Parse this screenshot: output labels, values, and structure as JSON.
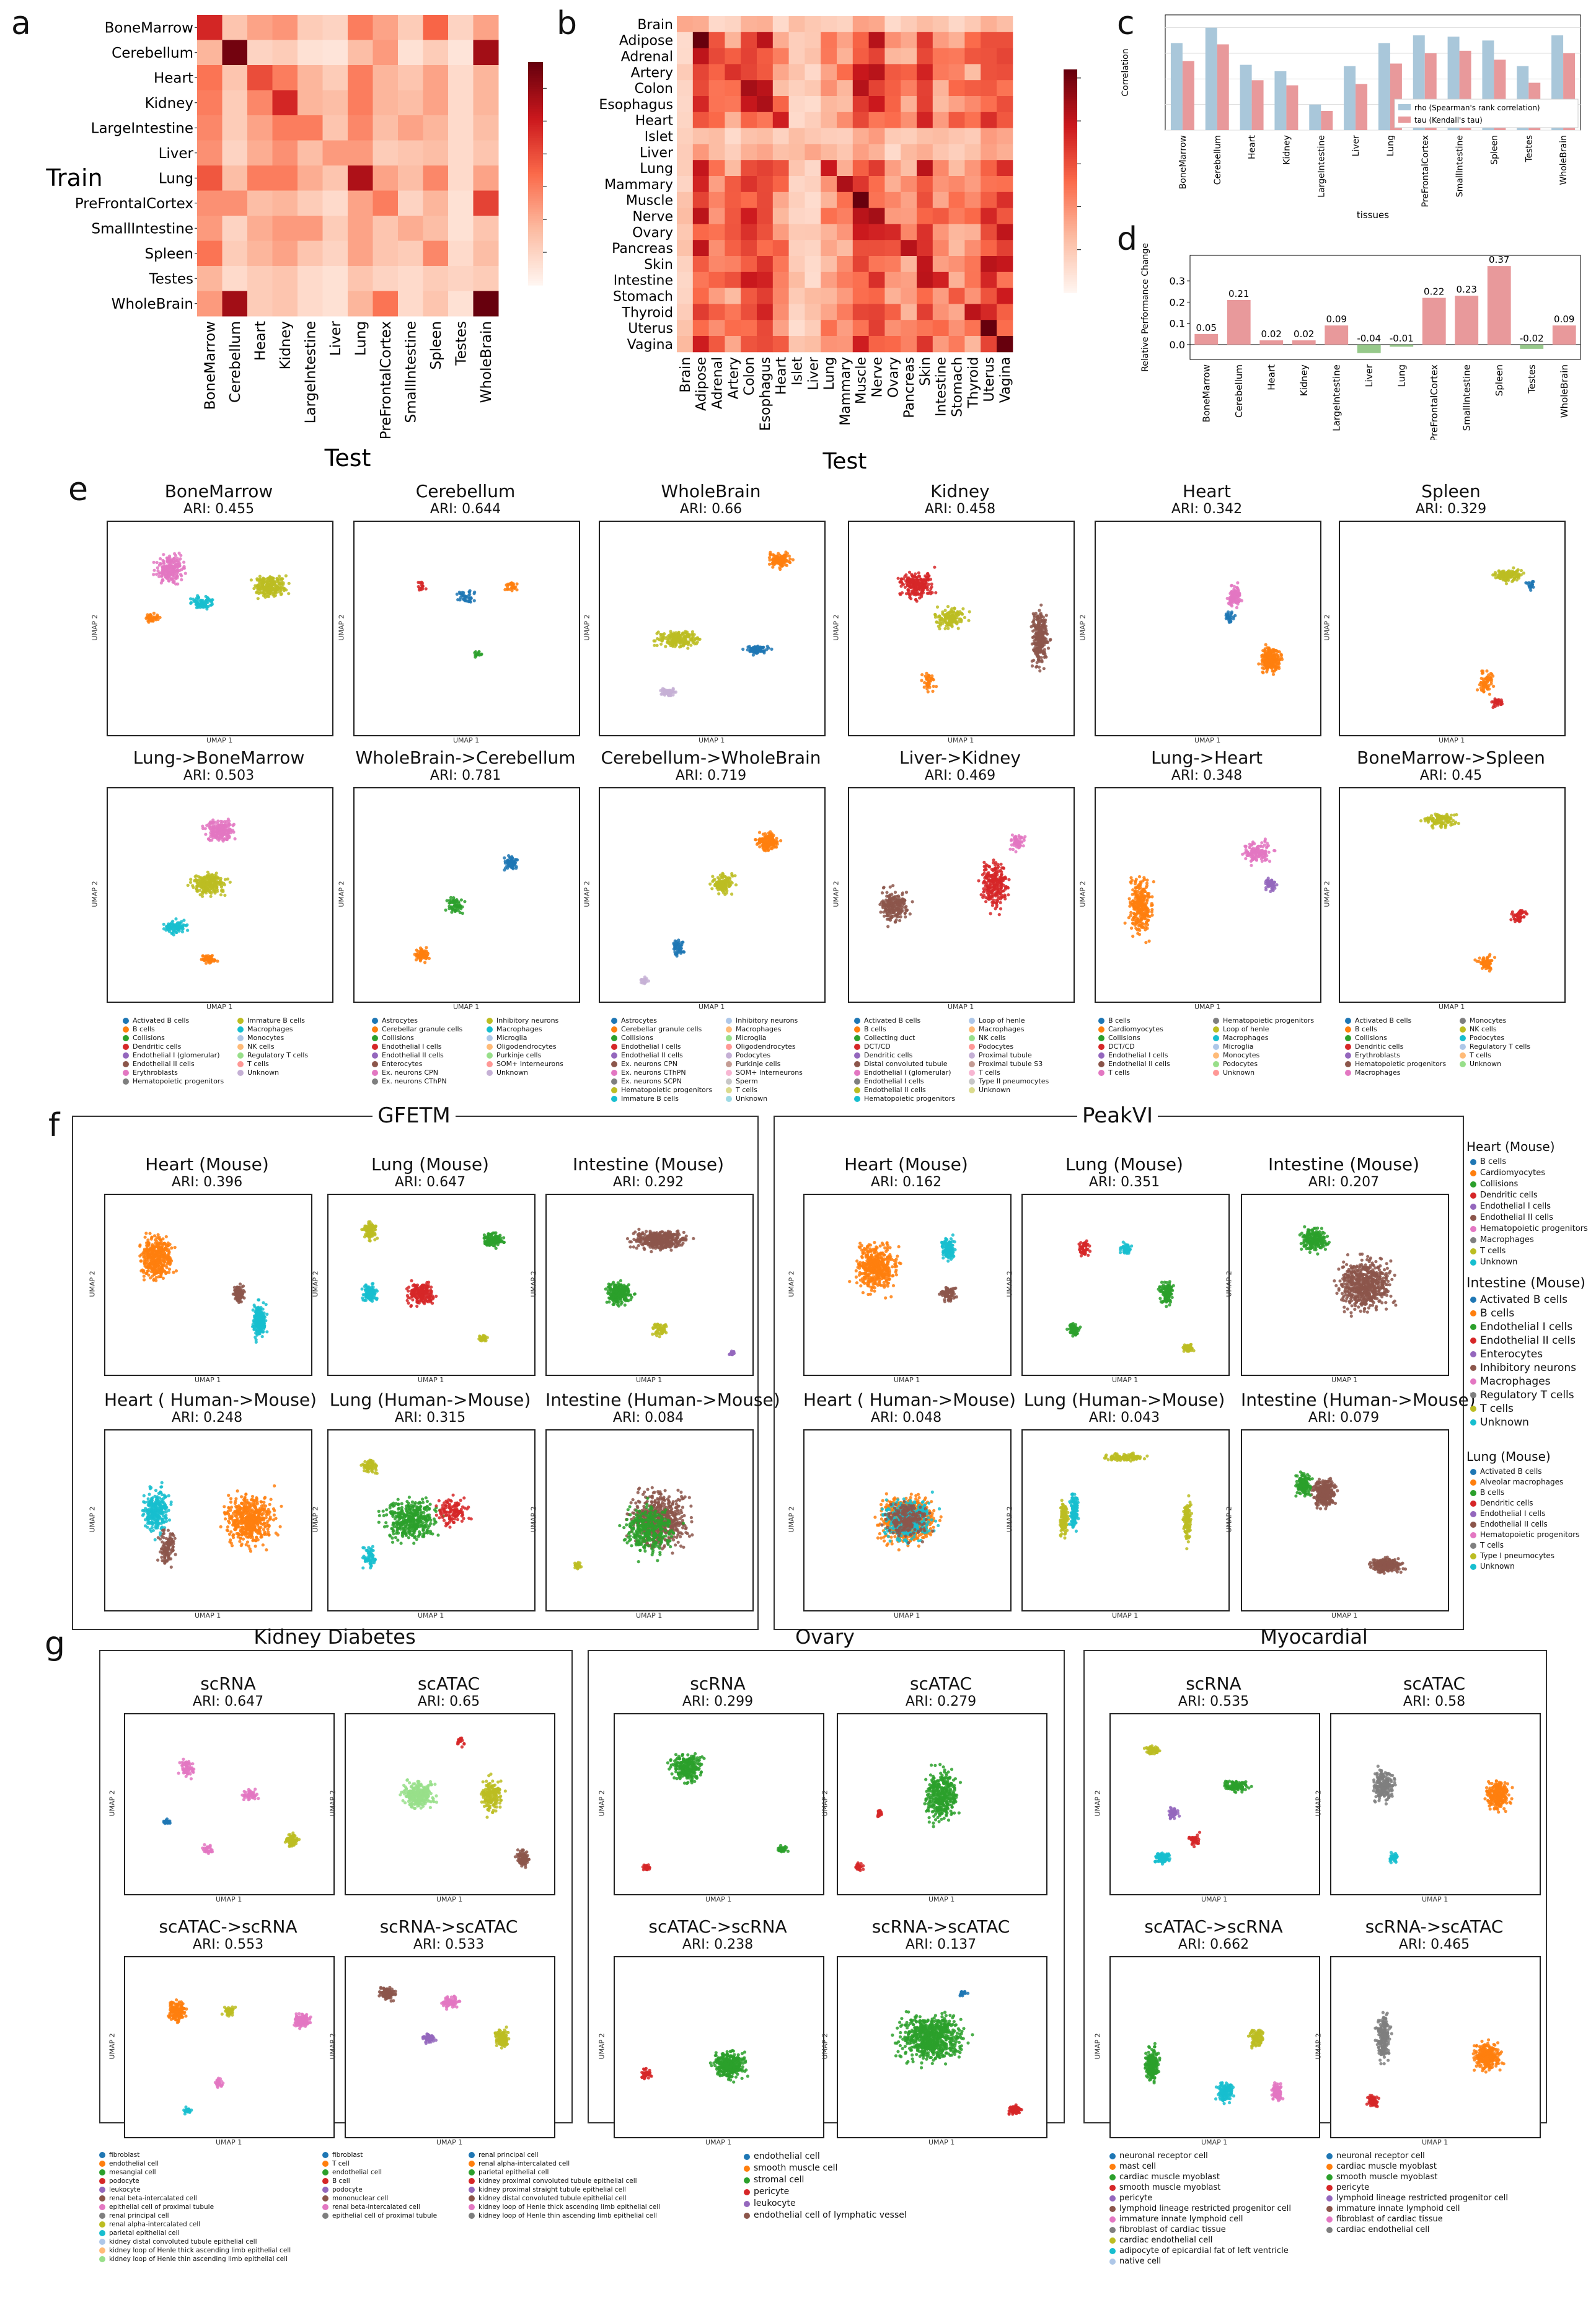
{
  "panels": {
    "a": "a",
    "b": "b",
    "c": "c",
    "d": "d",
    "e": "e",
    "f": "f",
    "g": "g"
  },
  "heatmap_a": {
    "train_label": "Train",
    "test_label": "Test",
    "rows": [
      "BoneMarrow",
      "Cerebellum",
      "Heart",
      "Kidney",
      "LargeIntestine",
      "Liver",
      "Lung",
      "PreFrontalCortex",
      "SmallIntestine",
      "Spleen",
      "Testes",
      "WholeBrain"
    ],
    "cols": [
      "BoneMarrow",
      "Cerebellum",
      "Heart",
      "Kidney",
      "LargeIntestine",
      "Liver",
      "Lung",
      "PreFrontalCortex",
      "SmallIntestine",
      "Spleen",
      "Testes",
      "WholeBrain"
    ],
    "values": [
      [
        0.48,
        0.14,
        0.22,
        0.25,
        0.12,
        0.1,
        0.3,
        0.22,
        0.12,
        0.35,
        0.1,
        0.22
      ],
      [
        0.18,
        0.66,
        0.1,
        0.12,
        0.06,
        0.05,
        0.16,
        0.24,
        0.06,
        0.12,
        0.05,
        0.58
      ],
      [
        0.32,
        0.14,
        0.4,
        0.3,
        0.18,
        0.12,
        0.3,
        0.18,
        0.14,
        0.22,
        0.08,
        0.18
      ],
      [
        0.3,
        0.12,
        0.28,
        0.48,
        0.18,
        0.16,
        0.3,
        0.18,
        0.16,
        0.22,
        0.08,
        0.18
      ],
      [
        0.28,
        0.12,
        0.22,
        0.3,
        0.3,
        0.14,
        0.28,
        0.16,
        0.22,
        0.18,
        0.08,
        0.16
      ],
      [
        0.26,
        0.1,
        0.2,
        0.26,
        0.16,
        0.24,
        0.24,
        0.12,
        0.14,
        0.16,
        0.08,
        0.14
      ],
      [
        0.38,
        0.16,
        0.3,
        0.3,
        0.2,
        0.14,
        0.56,
        0.22,
        0.16,
        0.28,
        0.08,
        0.22
      ],
      [
        0.26,
        0.26,
        0.16,
        0.18,
        0.12,
        0.08,
        0.22,
        0.3,
        0.1,
        0.18,
        0.06,
        0.42
      ],
      [
        0.24,
        0.1,
        0.2,
        0.24,
        0.24,
        0.12,
        0.22,
        0.14,
        0.2,
        0.16,
        0.06,
        0.14
      ],
      [
        0.32,
        0.12,
        0.18,
        0.22,
        0.14,
        0.1,
        0.22,
        0.14,
        0.12,
        0.28,
        0.08,
        0.16
      ],
      [
        0.18,
        0.08,
        0.12,
        0.14,
        0.08,
        0.06,
        0.14,
        0.1,
        0.08,
        0.12,
        0.1,
        0.12
      ],
      [
        0.24,
        0.58,
        0.12,
        0.14,
        0.08,
        0.06,
        0.18,
        0.32,
        0.08,
        0.14,
        0.06,
        0.68
      ]
    ],
    "cbar_ticks": [
      "0.6",
      "0.5",
      "0.4",
      "0.3",
      "0.2",
      "0.1"
    ],
    "vmax": 0.68
  },
  "heatmap_b": {
    "test_label": "Test",
    "rows": [
      "Brain",
      "Adipose",
      "Adrenal",
      "Artery",
      "Colon",
      "Esophagus",
      "Heart",
      "Islet",
      "Liver",
      "Lung",
      "Mammary",
      "Muscle",
      "Nerve",
      "Ovary",
      "Pancreas",
      "Skin",
      "Intestine",
      "Stomach",
      "Thyroid",
      "Uterus",
      "Vagina"
    ],
    "cols": [
      "Brain",
      "Adipose",
      "Adrenal",
      "Artery",
      "Colon",
      "Esophagus",
      "Heart",
      "Islet",
      "Liver",
      "Lung",
      "Mammary",
      "Muscle",
      "Nerve",
      "Ovary",
      "Pancreas",
      "Skin",
      "Intestine",
      "Stomach",
      "Thyroid",
      "Uterus",
      "Vagina"
    ],
    "cbar_ticks": [
      "0.5",
      "0.4",
      "0.3",
      "0.2",
      "0.1"
    ],
    "vmax": 0.52
  },
  "chart_c": {
    "ylabel": "Correlation",
    "xlabel": "tissues",
    "yticks": [
      "0.0",
      "0.2",
      "0.4",
      "0.6",
      "0.8"
    ],
    "categories": [
      "BoneMarrow",
      "Cerebellum",
      "Heart",
      "Kidney",
      "LargeIntestine",
      "Liver",
      "Lung",
      "PreFrontalCortex",
      "SmallIntestine",
      "Spleen",
      "Testes",
      "WholeBrain"
    ],
    "series": [
      {
        "name": "rho (Spearman's rank correlation)",
        "color": "#a9c7da",
        "values": [
          0.68,
          0.8,
          0.51,
          0.46,
          0.2,
          0.5,
          0.68,
          0.74,
          0.73,
          0.7,
          0.5,
          0.74
        ]
      },
      {
        "name": "tau (Kendall's tau)",
        "color": "#e8999b",
        "values": [
          0.54,
          0.67,
          0.39,
          0.35,
          0.15,
          0.36,
          0.52,
          0.6,
          0.62,
          0.55,
          0.37,
          0.6
        ]
      }
    ]
  },
  "chart_d": {
    "ylabel": "Relative Performance Change",
    "yticks": [
      "0.0",
      "0.1",
      "0.2",
      "0.3"
    ],
    "categories": [
      "BoneMarrow",
      "Cerebellum",
      "Heart",
      "Kidney",
      "LargeIntestine",
      "Liver",
      "Lung",
      "PreFrontalCortex",
      "SmallIntestine",
      "Spleen",
      "Testes",
      "WholeBrain"
    ],
    "values": [
      0.05,
      0.21,
      0.02,
      0.02,
      0.09,
      -0.04,
      -0.01,
      0.22,
      0.23,
      0.37,
      -0.02,
      0.09
    ],
    "labels": [
      "0.05",
      "0.21",
      "0.02",
      "0.02",
      "0.09",
      "-0.04",
      "-0.01",
      "0.22",
      "0.23",
      "0.37",
      "-0.02",
      "0.09"
    ],
    "pos_color": "#e8999b",
    "neg_color": "#96c98a"
  },
  "umap_axis": {
    "x": "UMAP 1",
    "y": "UMAP 2"
  },
  "panel_e": {
    "row1": [
      {
        "title": "BoneMarrow",
        "ari": "ARI: 0.455"
      },
      {
        "title": "Cerebellum",
        "ari": "ARI: 0.644"
      },
      {
        "title": "WholeBrain",
        "ari": "ARI: 0.66"
      },
      {
        "title": "Kidney",
        "ari": "ARI: 0.458"
      },
      {
        "title": "Heart",
        "ari": "ARI: 0.342"
      },
      {
        "title": "Spleen",
        "ari": "ARI: 0.329"
      }
    ],
    "row2": [
      {
        "title": "Lung->BoneMarrow",
        "ari": "ARI: 0.503"
      },
      {
        "title": "WholeBrain->Cerebellum",
        "ari": "ARI: 0.781"
      },
      {
        "title": "Cerebellum->WholeBrain",
        "ari": "ARI: 0.719"
      },
      {
        "title": "Liver->Kidney",
        "ari": "ARI: 0.469"
      },
      {
        "title": "Lung->Heart",
        "ari": "ARI: 0.348"
      },
      {
        "title": "BoneMarrow->Spleen",
        "ari": "ARI: 0.45"
      }
    ],
    "legends": [
      [
        "Activated B cells",
        "B cells",
        "Collisions",
        "Dendritic cells",
        "Endothelial I (glomerular)",
        "Endothelial II cells",
        "Erythroblasts",
        "Hematopoietic progenitors",
        "Immature B cells",
        "Macrophages",
        "Monocytes",
        "NK cells",
        "Regulatory T cells",
        "T cells",
        "Unknown"
      ],
      [
        "Astrocytes",
        "Cerebellar granule cells",
        "Collisions",
        "Endothelial I cells",
        "Endothelial II cells",
        "Enterocytes",
        "Ex. neurons CPN",
        "Ex. neurons CThPN",
        "Inhibitory neurons",
        "Macrophages",
        "Microglia",
        "Oligodendrocytes",
        "Purkinje cells",
        "SOM+ Interneurons",
        "Unknown"
      ],
      [
        "Astrocytes",
        "Cerebellar granule cells",
        "Collisions",
        "Endothelial I cells",
        "Endothelial II cells",
        "Ex. neurons CPN",
        "Ex. neurons CThPN",
        "Ex. neurons SCPN",
        "Hematopoietic progenitors",
        "Immature B cells",
        "Inhibitory neurons",
        "Macrophages",
        "Microglia",
        "Oligodendrocytes",
        "Podocytes",
        "Purkinje cells",
        "SOM+ Interneurons",
        "Sperm",
        "T cells",
        "Unknown"
      ],
      [
        "Activated B cells",
        "B cells",
        "Collecting duct",
        "DCT/CD",
        "Dendritic cells",
        "Distal convoluted tubule",
        "Endothelial I (glomerular)",
        "Endothelial I cells",
        "Endothelial II cells",
        "Hematopoietic progenitors",
        "Loop of henle",
        "Macrophages",
        "NK cells",
        "Podocytes",
        "Proximal tubule",
        "Proximal tubule S3",
        "T cells",
        "Type II pneumocytes",
        "Unknown"
      ],
      [
        "B cells",
        "Cardiomyocytes",
        "Collisions",
        "DCT/CD",
        "Endothelial I cells",
        "Endothelial II cells",
        "T cells",
        "Hematopoietic progenitors",
        "Loop of henle",
        "Macrophages",
        "Microglia",
        "Monocytes",
        "Podocytes",
        "Unknown"
      ],
      [
        "Activated B cells",
        "B cells",
        "Collisions",
        "Dendritic cells",
        "Erythroblasts",
        "Hematopoietic progenitors",
        "Macrophages",
        "Monocytes",
        "NK cells",
        "Podocytes",
        "Regulatory T cells",
        "T cells",
        "Unknown"
      ]
    ]
  },
  "panel_f": {
    "left_title": "GFETM",
    "right_title": "PeakVI",
    "left": [
      {
        "title": "Heart (Mouse)",
        "ari": "ARI: 0.396"
      },
      {
        "title": "Lung (Mouse)",
        "ari": "ARI: 0.647"
      },
      {
        "title": "Intestine (Mouse)",
        "ari": "ARI: 0.292"
      },
      {
        "title": "Heart ( Human->Mouse)",
        "ari": "ARI: 0.248"
      },
      {
        "title": "Lung (Human->Mouse)",
        "ari": "ARI: 0.315"
      },
      {
        "title": "Intestine (Human->Mouse)",
        "ari": "ARI: 0.084"
      }
    ],
    "right": [
      {
        "title": "Heart (Mouse)",
        "ari": "ARI: 0.162"
      },
      {
        "title": "Lung (Mouse)",
        "ari": "ARI: 0.351"
      },
      {
        "title": "Intestine (Mouse)",
        "ari": "ARI: 0.207"
      },
      {
        "title": "Heart ( Human->Mouse)",
        "ari": "ARI: 0.048"
      },
      {
        "title": "Lung (Human->Mouse)",
        "ari": "ARI: 0.043"
      },
      {
        "title": "Intestine (Human->Mouse)",
        "ari": "ARI: 0.079"
      }
    ],
    "legend_heart": {
      "title": "Heart (Mouse)",
      "items": [
        "B cells",
        "Cardiomyocytes",
        "Collisions",
        "Dendritic cells",
        "Endothelial I cells",
        "Endothelial II cells",
        "Hematopoietic progenitors",
        "Macrophages",
        "T cells",
        "Unknown"
      ]
    },
    "legend_intestine": {
      "title": "Intestine (Mouse)",
      "items": [
        "Activated B cells",
        "B cells",
        "Endothelial I cells",
        "Endothelial II cells",
        "Enterocytes",
        "Inhibitory neurons",
        "Macrophages",
        "Regulatory T cells",
        "T cells",
        "Unknown"
      ]
    },
    "legend_lung": {
      "title": "Lung (Mouse)",
      "items": [
        "Activated B cells",
        "Alveolar macrophages",
        "B cells",
        "Dendritic cells",
        "Endothelial I cells",
        "Endothelial II cells",
        "Hematopoietic progenitors",
        "T cells",
        "Type I pneumocytes",
        "Unknown"
      ]
    }
  },
  "panel_g": {
    "groups": [
      {
        "title": "Kidney Diabetes",
        "plots": [
          {
            "title": "scRNA",
            "ari": "ARI: 0.647"
          },
          {
            "title": "scATAC",
            "ari": "ARI: 0.65"
          },
          {
            "title": "scATAC->scRNA",
            "ari": "ARI: 0.553"
          },
          {
            "title": "scRNA->scATAC",
            "ari": "ARI: 0.533"
          }
        ]
      },
      {
        "title": "Ovary",
        "plots": [
          {
            "title": "scRNA",
            "ari": "ARI: 0.299"
          },
          {
            "title": "scATAC",
            "ari": "ARI: 0.279"
          },
          {
            "title": "scATAC->scRNA",
            "ari": "ARI: 0.238"
          },
          {
            "title": "scRNA->scATAC",
            "ari": "ARI: 0.137"
          }
        ]
      },
      {
        "title": "Myocardial",
        "plots": [
          {
            "title": "scRNA",
            "ari": "ARI: 0.535"
          },
          {
            "title": "scATAC",
            "ari": "ARI: 0.58"
          },
          {
            "title": "scATAC->scRNA",
            "ari": "ARI: 0.662"
          },
          {
            "title": "scRNA->scATAC",
            "ari": "ARI: 0.465"
          }
        ]
      }
    ],
    "legend_kidney_1": [
      "fibroblast",
      "endothelial cell",
      "mesangial cell",
      "podocyte",
      "leukocyte",
      "renal beta-intercalated cell",
      "epithelial cell of proximal tubule",
      "renal principal cell",
      "renal alpha-intercalated cell",
      "parietal epithelial cell",
      "kidney distal convoluted tubule epithelial cell",
      "kidney loop of Henle thick ascending limb epithelial cell",
      "kidney loop of Henle thin ascending limb epithelial cell"
    ],
    "legend_kidney_2": [
      "fibroblast",
      "T cell",
      "endothelial cell",
      "B cell",
      "podocyte",
      "mononuclear cell",
      "renal beta-intercalated cell",
      "epithelial cell of proximal tubule"
    ],
    "legend_kidney_3": [
      "renal principal cell",
      "renal alpha-intercalated cell",
      "parietal epithelial cell",
      "kidney proximal convoluted tubule epithelial cell",
      "kidney proximal straight tubule epithelial cell",
      "kidney distal convoluted tubule epithelial cell",
      "kidney loop of Henle thick ascending limb epithelial cell",
      "kidney loop of Henle thin ascending limb epithelial cell"
    ],
    "legend_ovary": [
      "endothelial cell",
      "smooth muscle cell",
      "stromal cell",
      "pericyte",
      "leukocyte",
      "endothelial cell of lymphatic vessel"
    ],
    "legend_myo_1": [
      "neuronal receptor cell",
      "mast cell",
      "cardiac muscle myoblast",
      "smooth muscle myoblast",
      "pericyte",
      "lymphoid lineage restricted progenitor cell",
      "immature innate lymphoid cell",
      "fibroblast of cardiac tissue",
      "cardiac endothelial cell",
      "adipocyte of epicardial fat of left ventricle",
      "native cell"
    ],
    "legend_myo_2": [
      "neuronal receptor cell",
      "cardiac muscle myoblast",
      "smooth muscle myoblast",
      "pericyte",
      "lymphoid lineage restricted progenitor cell",
      "immature innate lymphoid cell",
      "fibroblast of cardiac tissue",
      "cardiac endothelial cell"
    ]
  }
}
